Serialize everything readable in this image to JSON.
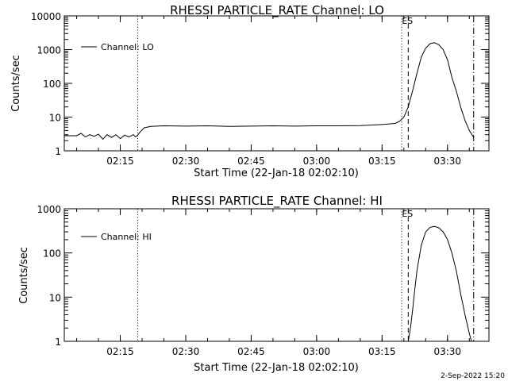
{
  "footer_date": "2-Sep-2022 15:20",
  "chart_data": [
    {
      "type": "line",
      "title": "RHESSI PARTICLE_RATE Channel: LO",
      "xlabel": "Start Time (22-Jan-18 02:02:10)",
      "ylabel": "Counts/sec",
      "yscale": "log",
      "ylim": [
        1,
        10000
      ],
      "xlim": [
        "02:02:10",
        "03:39:30"
      ],
      "x_ticks": [
        "02:15",
        "02:30",
        "02:45",
        "03:00",
        "03:15",
        "03:30"
      ],
      "y_ticks": [
        "1",
        "10",
        "100",
        "1000",
        "10000"
      ],
      "legend": {
        "label": "Channel: LO",
        "position": "top-left"
      },
      "series": [
        {
          "name": "Channel: LO",
          "x": [
            "02:02:10",
            "02:05:00",
            "02:06:00",
            "02:07:00",
            "02:08:00",
            "02:09:00",
            "02:10:00",
            "02:11:00",
            "02:12:00",
            "02:13:00",
            "02:14:00",
            "02:15:00",
            "02:16:00",
            "02:17:00",
            "02:18:00",
            "02:18:30",
            "02:19:00",
            "02:19:30",
            "02:20:30",
            "02:22:00",
            "02:25:00",
            "02:30:00",
            "02:35:00",
            "02:40:00",
            "02:45:00",
            "02:50:00",
            "02:55:00",
            "03:00:00",
            "03:05:00",
            "03:10:00",
            "03:15:00",
            "03:18:00",
            "03:19:00",
            "03:20:00",
            "03:21:00",
            "03:22:00",
            "03:23:00",
            "03:24:00",
            "03:25:00",
            "03:26:00",
            "03:27:00",
            "03:28:00",
            "03:29:00",
            "03:30:00",
            "03:31:00",
            "03:32:00",
            "03:33:00",
            "03:34:00",
            "03:35:00",
            "03:36:00"
          ],
          "values": [
            2.8,
            2.8,
            3.3,
            2.6,
            3.0,
            2.7,
            3.1,
            2.2,
            3.0,
            2.5,
            3.0,
            2.3,
            2.9,
            2.6,
            3.0,
            2.6,
            2.9,
            3.6,
            4.8,
            5.3,
            5.5,
            5.4,
            5.5,
            5.3,
            5.4,
            5.5,
            5.4,
            5.5,
            5.5,
            5.6,
            6.0,
            6.5,
            7.5,
            10,
            20,
            60,
            200,
            600,
            1100,
            1500,
            1600,
            1400,
            1000,
            500,
            150,
            60,
            20,
            8,
            4,
            2.5
          ]
        }
      ],
      "vlines": [
        {
          "x": "02:19:00",
          "style": "dotted"
        },
        {
          "x": "03:19:30",
          "style": "dotted"
        },
        {
          "x": "03:21:00",
          "style": "dashed",
          "label": "ES"
        },
        {
          "x": "03:36:00",
          "style": "dash-dot"
        }
      ],
      "grid": false
    },
    {
      "type": "line",
      "title": "RHESSI PARTICLE_RATE Channel: HI",
      "xlabel": "Start Time (22-Jan-18 02:02:10)",
      "ylabel": "Counts/sec",
      "yscale": "log",
      "ylim": [
        1,
        1000
      ],
      "xlim": [
        "02:02:10",
        "03:39:30"
      ],
      "x_ticks": [
        "02:15",
        "02:30",
        "02:45",
        "03:00",
        "03:15",
        "03:30"
      ],
      "y_ticks": [
        "1",
        "10",
        "100",
        "1000"
      ],
      "legend": {
        "label": "Channel: HI",
        "position": "top-left"
      },
      "series": [
        {
          "name": "Channel: HI",
          "x": [
            "03:21:00",
            "03:21:30",
            "03:22:00",
            "03:22:30",
            "03:23:00",
            "03:24:00",
            "03:25:00",
            "03:26:00",
            "03:27:00",
            "03:28:00",
            "03:29:00",
            "03:30:00",
            "03:31:00",
            "03:32:00",
            "03:33:00",
            "03:34:00",
            "03:35:00",
            "03:35:30"
          ],
          "values": [
            1,
            2,
            5,
            15,
            40,
            150,
            300,
            380,
            400,
            370,
            300,
            200,
            100,
            40,
            12,
            4,
            1.5,
            1
          ]
        }
      ],
      "vlines": [
        {
          "x": "02:19:00",
          "style": "dotted"
        },
        {
          "x": "03:19:30",
          "style": "dotted"
        },
        {
          "x": "03:21:00",
          "style": "dashed",
          "label": "ES"
        },
        {
          "x": "03:36:00",
          "style": "dash-dot"
        }
      ],
      "grid": false
    }
  ]
}
